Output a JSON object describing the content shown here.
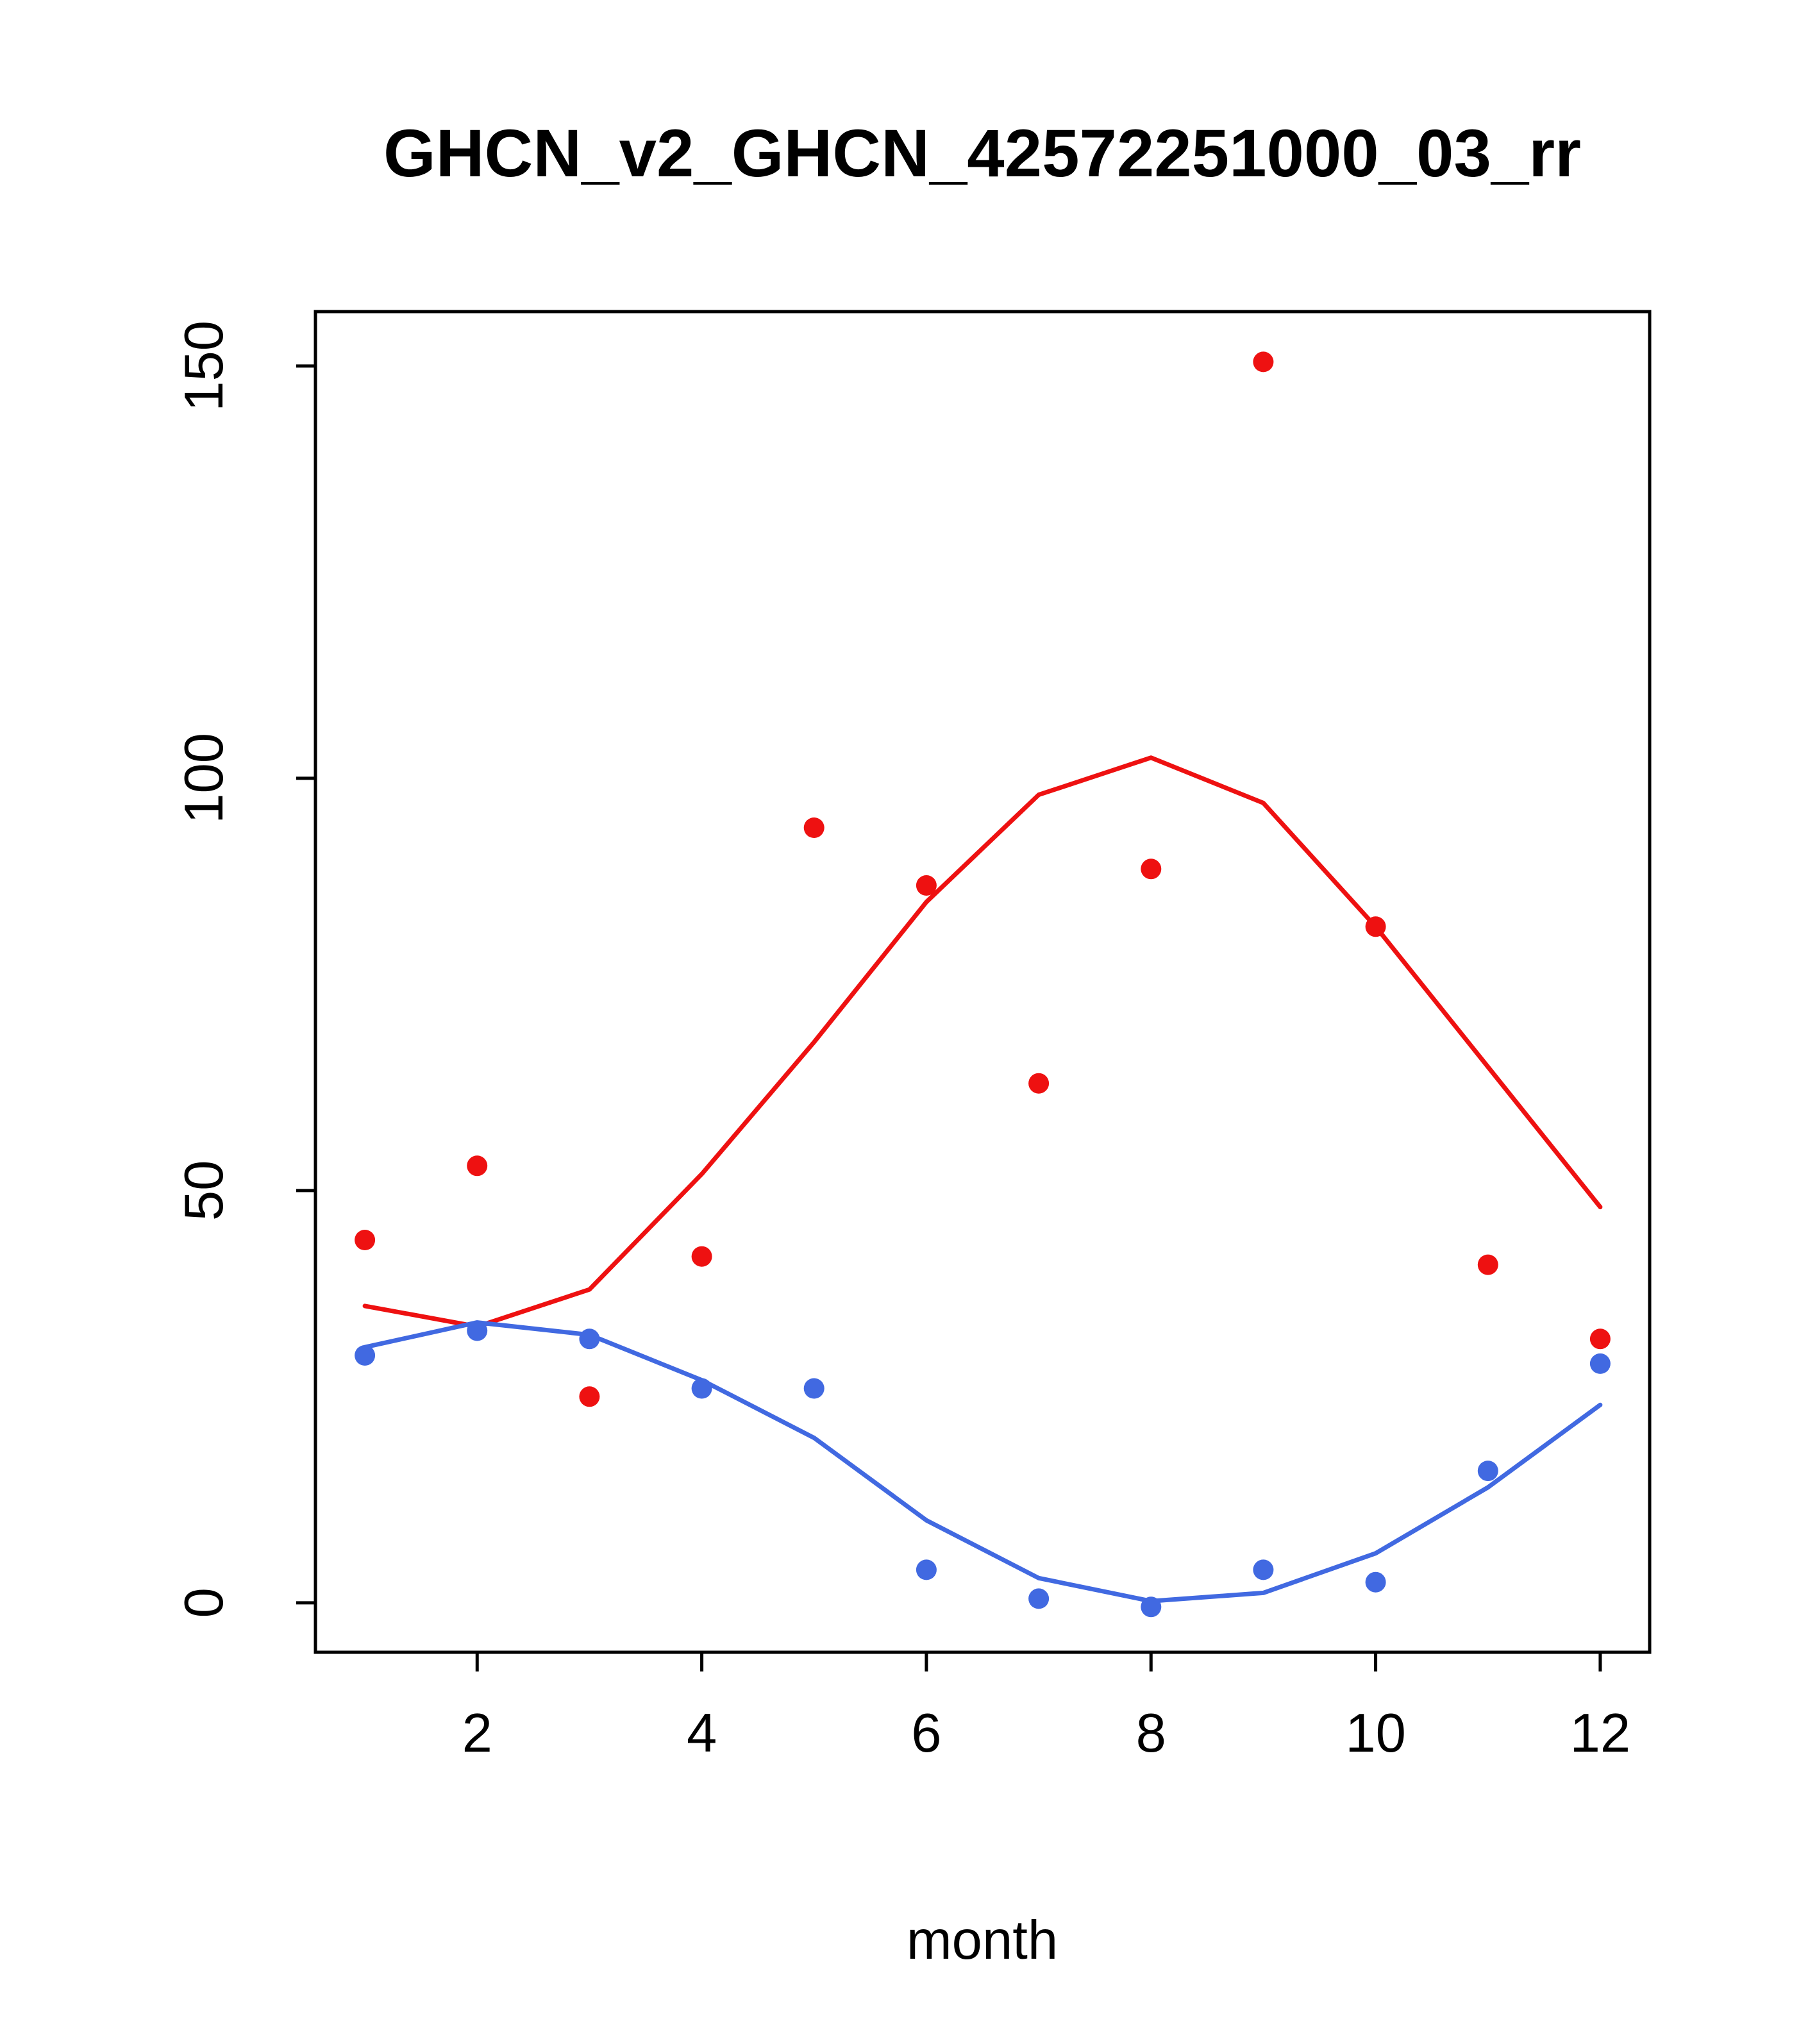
{
  "chart_data": {
    "type": "scatter",
    "title": "GHCN_v2_GHCN_42572251000_03_rr",
    "xlabel": "month",
    "ylabel": "",
    "xlim": [
      0.56,
      12.44
    ],
    "ylim": [
      -6,
      156.6
    ],
    "x_ticks": [
      2,
      4,
      6,
      8,
      10,
      12
    ],
    "y_ticks": [
      0,
      50,
      100,
      150
    ],
    "grid": false,
    "legend": "none",
    "x": [
      1,
      2,
      3,
      4,
      5,
      6,
      7,
      8,
      9,
      10,
      11,
      12
    ],
    "series": [
      {
        "name": "red-scatter",
        "kind": "points",
        "color": "#ee1111",
        "values": [
          44,
          53,
          25,
          42,
          94,
          87,
          63,
          89,
          150.5,
          82,
          41,
          32
        ]
      },
      {
        "name": "red-smooth",
        "kind": "line",
        "color": "#ee1111",
        "values": [
          36,
          33.5,
          38,
          52,
          68,
          85,
          98,
          102.5,
          97,
          82,
          65,
          48
        ]
      },
      {
        "name": "blue-scatter",
        "kind": "points",
        "color": "#4169e1",
        "values": [
          30,
          33,
          32,
          26,
          26,
          4,
          0.5,
          -0.5,
          4,
          2.5,
          16,
          29
        ]
      },
      {
        "name": "blue-smooth",
        "kind": "line",
        "color": "#4169e1",
        "values": [
          31,
          34,
          32.5,
          27,
          20,
          10,
          3,
          0.2,
          1.2,
          6,
          14,
          24
        ]
      }
    ],
    "colors": {
      "axis": "#000000",
      "background": "#ffffff"
    }
  }
}
